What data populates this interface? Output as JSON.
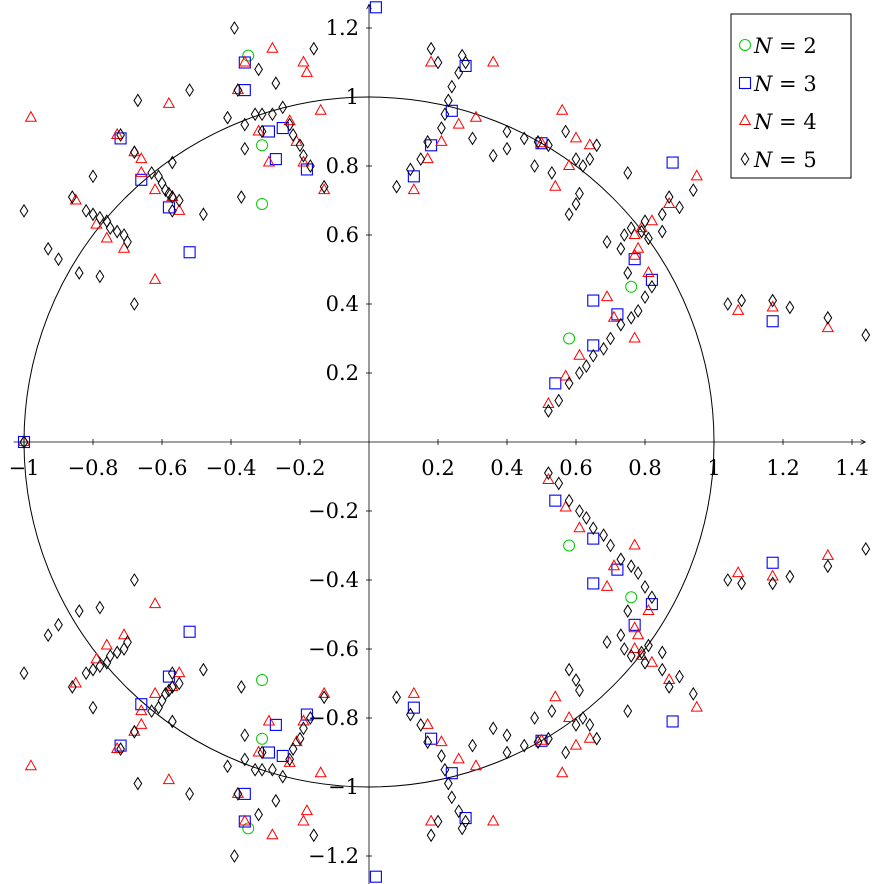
{
  "chart_data": {
    "type": "scatter",
    "title": "",
    "xlabel": "",
    "ylabel": "",
    "xlim": [
      -1.03,
      1.45
    ],
    "ylim": [
      -1.3,
      1.28
    ],
    "grid": false,
    "legend_position": "top-right",
    "x_ticks": [
      -1,
      -0.8,
      -0.6,
      -0.4,
      -0.2,
      0.2,
      0.4,
      0.6,
      0.8,
      1,
      1.2,
      1.4
    ],
    "x_tick_labels": [
      "−1",
      "−0.8",
      "−0.6",
      "−0.4",
      "−0.2",
      "0.2",
      "0.4",
      "0.6",
      "0.8",
      "1",
      "1.2",
      "1.4"
    ],
    "y_ticks": [
      -1.2,
      -1,
      -0.8,
      -0.6,
      -0.4,
      -0.2,
      0.2,
      0.4,
      0.6,
      0.8,
      1,
      1.2
    ],
    "y_tick_labels": [
      "−1.2",
      "−1",
      "−0.8",
      "−0.6",
      "−0.4",
      "−0.2",
      "0.2",
      "0.4",
      "0.6",
      "0.8",
      "1",
      "1.2"
    ],
    "unit_circle": {
      "center": [
        0,
        0
      ],
      "radius": 1
    },
    "symmetry": "points mirrored across the real axis (conjugate pairs)",
    "series": [
      {
        "name": "N = 2",
        "marker": "circle",
        "color": "#00cc00",
        "points": [
          [
            -0.35,
            1.12
          ],
          [
            -0.31,
            0.86
          ],
          [
            -0.31,
            0.69
          ],
          [
            0.58,
            0.3
          ],
          [
            0.76,
            0.45
          ]
        ]
      },
      {
        "name": "N = 3",
        "marker": "square",
        "color": "#0000ff",
        "points": [
          [
            -1.0,
            0.0
          ],
          [
            0.5,
            0.866
          ],
          [
            0.02,
            1.26
          ],
          [
            0.24,
            0.96
          ],
          [
            0.28,
            1.09
          ],
          [
            0.18,
            0.86
          ],
          [
            0.13,
            0.77
          ],
          [
            0.88,
            0.81
          ],
          [
            0.77,
            0.53
          ],
          [
            0.82,
            0.47
          ],
          [
            0.65,
            0.41
          ],
          [
            0.72,
            0.37
          ],
          [
            0.65,
            0.28
          ],
          [
            0.54,
            0.17
          ],
          [
            1.17,
            0.35
          ],
          [
            -0.36,
            1.1
          ],
          [
            -0.36,
            1.02
          ],
          [
            -0.29,
            0.9
          ],
          [
            -0.25,
            0.91
          ],
          [
            -0.27,
            0.82
          ],
          [
            -0.18,
            0.79
          ],
          [
            -0.72,
            0.88
          ],
          [
            -0.66,
            0.76
          ],
          [
            -0.58,
            0.68
          ],
          [
            -0.52,
            0.55
          ]
        ]
      },
      {
        "name": "N = 4",
        "marker": "triangle",
        "color": "#ff0000",
        "points": [
          [
            -1.0,
            0.0
          ],
          [
            0.5,
            0.866
          ],
          [
            -0.98,
            0.94
          ],
          [
            -0.66,
            0.78
          ],
          [
            -0.76,
            0.59
          ],
          [
            -0.79,
            0.63
          ],
          [
            -0.85,
            0.7
          ],
          [
            -0.68,
            0.84
          ],
          [
            -0.73,
            0.89
          ],
          [
            -0.66,
            0.82
          ],
          [
            -0.58,
            0.98
          ],
          [
            -0.62,
            0.73
          ],
          [
            -0.57,
            0.71
          ],
          [
            -0.55,
            0.67
          ],
          [
            -0.62,
            0.47
          ],
          [
            -0.71,
            0.56
          ],
          [
            -0.36,
            1.1
          ],
          [
            -0.38,
            1.02
          ],
          [
            -0.29,
            0.81
          ],
          [
            -0.32,
            0.9
          ],
          [
            -0.28,
            1.14
          ],
          [
            -0.23,
            0.93
          ],
          [
            -0.21,
            0.87
          ],
          [
            -0.19,
            0.81
          ],
          [
            -0.19,
            1.1
          ],
          [
            -0.13,
            0.73
          ],
          [
            -0.14,
            0.96
          ],
          [
            -0.18,
            1.07
          ],
          [
            0.13,
            0.73
          ],
          [
            0.17,
            0.82
          ],
          [
            0.21,
            0.87
          ],
          [
            0.18,
            1.1
          ],
          [
            0.26,
            0.92
          ],
          [
            0.31,
            0.94
          ],
          [
            0.36,
            1.1
          ],
          [
            0.56,
            0.96
          ],
          [
            0.54,
            0.74
          ],
          [
            0.58,
            0.8
          ],
          [
            0.6,
            0.88
          ],
          [
            0.64,
            0.86
          ],
          [
            0.77,
            0.54
          ],
          [
            0.78,
            0.56
          ],
          [
            0.79,
            0.62
          ],
          [
            0.77,
            0.6
          ],
          [
            0.81,
            0.49
          ],
          [
            0.82,
            0.64
          ],
          [
            0.87,
            0.69
          ],
          [
            0.69,
            0.42
          ],
          [
            0.71,
            0.36
          ],
          [
            0.61,
            0.25
          ],
          [
            0.57,
            0.19
          ],
          [
            0.52,
            0.11
          ],
          [
            0.77,
            0.3
          ],
          [
            0.95,
            0.77
          ],
          [
            1.07,
            0.38
          ],
          [
            1.17,
            0.39
          ],
          [
            1.33,
            0.33
          ]
        ]
      },
      {
        "name": "N = 5",
        "marker": "diamond",
        "color": "#000000",
        "points": [
          [
            -1.0,
            0.0
          ],
          [
            -1.0,
            0.67
          ],
          [
            -0.93,
            0.56
          ],
          [
            -0.9,
            0.53
          ],
          [
            -0.86,
            0.71
          ],
          [
            -0.82,
            0.67
          ],
          [
            -0.84,
            0.49
          ],
          [
            -0.78,
            0.48
          ],
          [
            -0.8,
            0.77
          ],
          [
            -0.8,
            0.66
          ],
          [
            -0.78,
            0.65
          ],
          [
            -0.76,
            0.64
          ],
          [
            -0.75,
            0.62
          ],
          [
            -0.73,
            0.61
          ],
          [
            -0.71,
            0.6
          ],
          [
            -0.7,
            0.58
          ],
          [
            -0.68,
            0.4
          ],
          [
            -0.67,
            0.99
          ],
          [
            -0.72,
            0.89
          ],
          [
            -0.68,
            0.84
          ],
          [
            -0.63,
            0.78
          ],
          [
            -0.61,
            0.77
          ],
          [
            -0.6,
            0.75
          ],
          [
            -0.59,
            0.73
          ],
          [
            -0.58,
            0.72
          ],
          [
            -0.57,
            0.71
          ],
          [
            -0.55,
            0.7
          ],
          [
            -0.57,
            0.67
          ],
          [
            -0.57,
            0.81
          ],
          [
            -0.52,
            1.02
          ],
          [
            -0.48,
            0.66
          ],
          [
            -0.39,
            1.2
          ],
          [
            -0.41,
            0.94
          ],
          [
            -0.38,
            1.02
          ],
          [
            -0.36,
            0.92
          ],
          [
            -0.36,
            0.85
          ],
          [
            -0.37,
            0.71
          ],
          [
            -0.33,
            0.95
          ],
          [
            -0.32,
            1.08
          ],
          [
            -0.31,
            0.9
          ],
          [
            -0.28,
            0.95
          ],
          [
            -0.27,
            1.04
          ],
          [
            -0.25,
            0.97
          ],
          [
            -0.23,
            0.92
          ],
          [
            -0.22,
            0.89
          ],
          [
            -0.2,
            0.86
          ],
          [
            -0.19,
            0.83
          ],
          [
            -0.17,
            0.8
          ],
          [
            -0.16,
            1.14
          ],
          [
            -0.13,
            0.74
          ],
          [
            -0.31,
            0.95
          ],
          [
            0.08,
            0.74
          ],
          [
            0.12,
            0.79
          ],
          [
            0.15,
            0.82
          ],
          [
            0.17,
            0.87
          ],
          [
            0.18,
            1.14
          ],
          [
            0.2,
            1.1
          ],
          [
            0.21,
            0.91
          ],
          [
            0.22,
            0.95
          ],
          [
            0.23,
            0.99
          ],
          [
            0.24,
            1.03
          ],
          [
            0.26,
            1.07
          ],
          [
            0.28,
            1.1
          ],
          [
            0.27,
            1.12
          ],
          [
            0.3,
            0.88
          ],
          [
            0.36,
            0.83
          ],
          [
            0.4,
            0.9
          ],
          [
            0.45,
            0.88
          ],
          [
            0.4,
            0.85
          ],
          [
            0.49,
            0.87
          ],
          [
            0.48,
            0.8
          ],
          [
            0.53,
            0.78
          ],
          [
            0.52,
            0.86
          ],
          [
            0.57,
            0.9
          ],
          [
            0.6,
            0.69
          ],
          [
            0.58,
            0.66
          ],
          [
            0.61,
            0.72
          ],
          [
            0.6,
            0.82
          ],
          [
            0.62,
            0.8
          ],
          [
            0.64,
            0.82
          ],
          [
            0.66,
            0.86
          ],
          [
            0.69,
            0.58
          ],
          [
            0.74,
            0.6
          ],
          [
            0.76,
            0.62
          ],
          [
            0.73,
            0.56
          ],
          [
            0.75,
            0.49
          ],
          [
            0.75,
            0.78
          ],
          [
            0.79,
            0.61
          ],
          [
            0.81,
            0.59
          ],
          [
            0.8,
            0.64
          ],
          [
            0.85,
            0.66
          ],
          [
            0.87,
            0.71
          ],
          [
            0.85,
            0.61
          ],
          [
            0.9,
            0.68
          ],
          [
            0.94,
            0.73
          ],
          [
            0.78,
            0.38
          ],
          [
            0.8,
            0.42
          ],
          [
            0.82,
            0.45
          ],
          [
            0.76,
            0.36
          ],
          [
            0.73,
            0.34
          ],
          [
            0.7,
            0.3
          ],
          [
            0.68,
            0.27
          ],
          [
            0.65,
            0.25
          ],
          [
            0.63,
            0.22
          ],
          [
            0.61,
            0.2
          ],
          [
            0.58,
            0.17
          ],
          [
            0.55,
            0.12
          ],
          [
            0.52,
            0.09
          ],
          [
            1.04,
            0.4
          ],
          [
            1.08,
            0.41
          ],
          [
            1.17,
            0.41
          ],
          [
            1.22,
            0.39
          ],
          [
            1.33,
            0.36
          ],
          [
            1.44,
            0.31
          ]
        ]
      }
    ]
  }
}
